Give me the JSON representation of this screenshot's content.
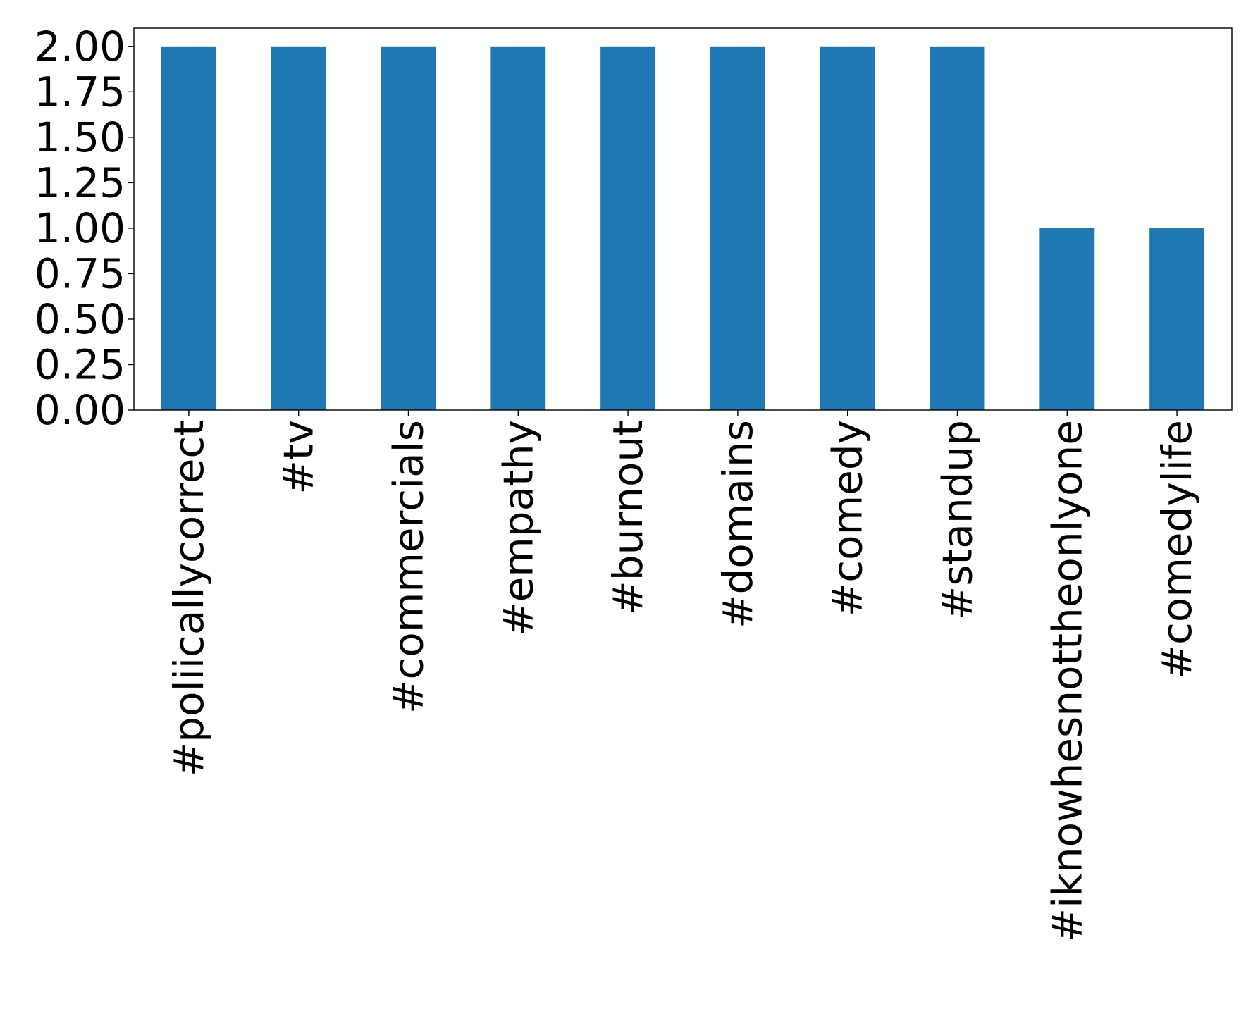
{
  "chart_data": {
    "type": "bar",
    "title": "",
    "xlabel": "",
    "ylabel": "",
    "categories": [
      "#poliicallycorrect",
      "#tv",
      "#commercials",
      "#empathy",
      "#burnout",
      "#domains",
      "#comedy",
      "#standup",
      "#iknowhesnottheonlyone",
      "#comedylife"
    ],
    "values": [
      2,
      2,
      2,
      2,
      2,
      2,
      2,
      2,
      1,
      1
    ],
    "ylim": [
      0,
      2.1
    ],
    "yticks": [
      "0.00",
      "0.25",
      "0.50",
      "0.75",
      "1.00",
      "1.25",
      "1.50",
      "1.75",
      "2.00"
    ],
    "ytick_values": [
      0,
      0.25,
      0.5,
      0.75,
      1.0,
      1.25,
      1.5,
      1.75,
      2.0
    ],
    "bar_color": "#1f77b4",
    "grid": false,
    "legend": "none"
  }
}
